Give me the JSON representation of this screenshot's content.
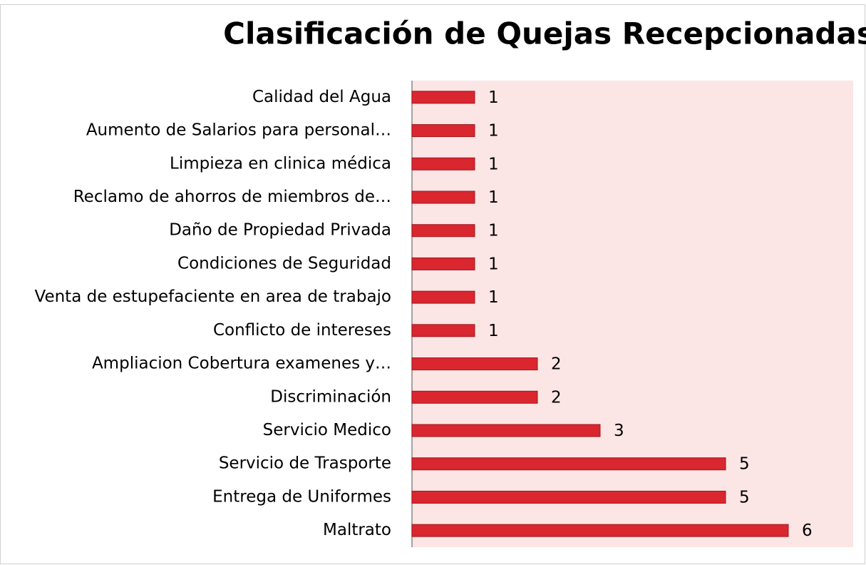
{
  "chart_data": {
    "type": "barh",
    "title": "Clasificación de Quejas Recepcionadas",
    "categories": [
      "Calidad del Agua",
      "Aumento de Salarios para personal…",
      "Limpieza en clinica médica",
      "Reclamo de ahorros de miembros de…",
      "Daño de Propiedad Privada",
      "Condiciones de Seguridad",
      "Venta de estupefaciente en area de trabajo",
      "Conflicto de intereses",
      "Ampliacion Cobertura examenes y…",
      "Discriminación",
      "Servicio Medico",
      "Servicio de Trasporte",
      "Entrega de Uniformes",
      "Maltrato"
    ],
    "values": [
      1,
      1,
      1,
      1,
      1,
      1,
      1,
      1,
      2,
      2,
      3,
      5,
      5,
      6
    ],
    "color": "#d9262f",
    "xlim": [
      0,
      7
    ]
  }
}
